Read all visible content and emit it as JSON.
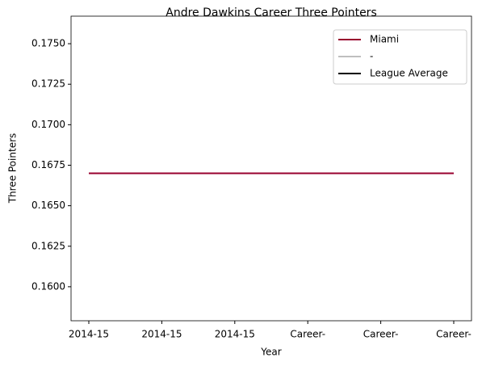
{
  "chart_data": {
    "type": "line",
    "title": "Andre Dawkins Career Three Pointers",
    "x_label": "Year",
    "y_label": "Three Pointers",
    "categories": [
      "2014-15",
      "2014-15",
      "2014-15",
      "Career-",
      "Career-",
      "Career-"
    ],
    "series": [
      {
        "name": "Miami",
        "color": "#98002e",
        "values": [
          0.167,
          0.167,
          0.167,
          0.167,
          0.167,
          0.167
        ]
      },
      {
        "name": "-",
        "color": "#bfbfbf",
        "values": [
          null,
          null,
          null,
          null,
          null,
          null
        ]
      },
      {
        "name": "League Average",
        "color": "#000000",
        "values": [
          null,
          null,
          null,
          null,
          null,
          null
        ]
      }
    ],
    "ylim": [
      0.1579,
      0.1767
    ],
    "yticks": [
      {
        "value": 0.16,
        "label": "0.1600"
      },
      {
        "value": 0.1625,
        "label": "0.1625"
      },
      {
        "value": 0.165,
        "label": "0.1650"
      },
      {
        "value": 0.1675,
        "label": "0.1675"
      },
      {
        "value": 0.17,
        "label": "0.1700"
      },
      {
        "value": 0.1725,
        "label": "0.1725"
      },
      {
        "value": 0.175,
        "label": "0.1750"
      }
    ],
    "legend": "upper right",
    "grid": false
  }
}
